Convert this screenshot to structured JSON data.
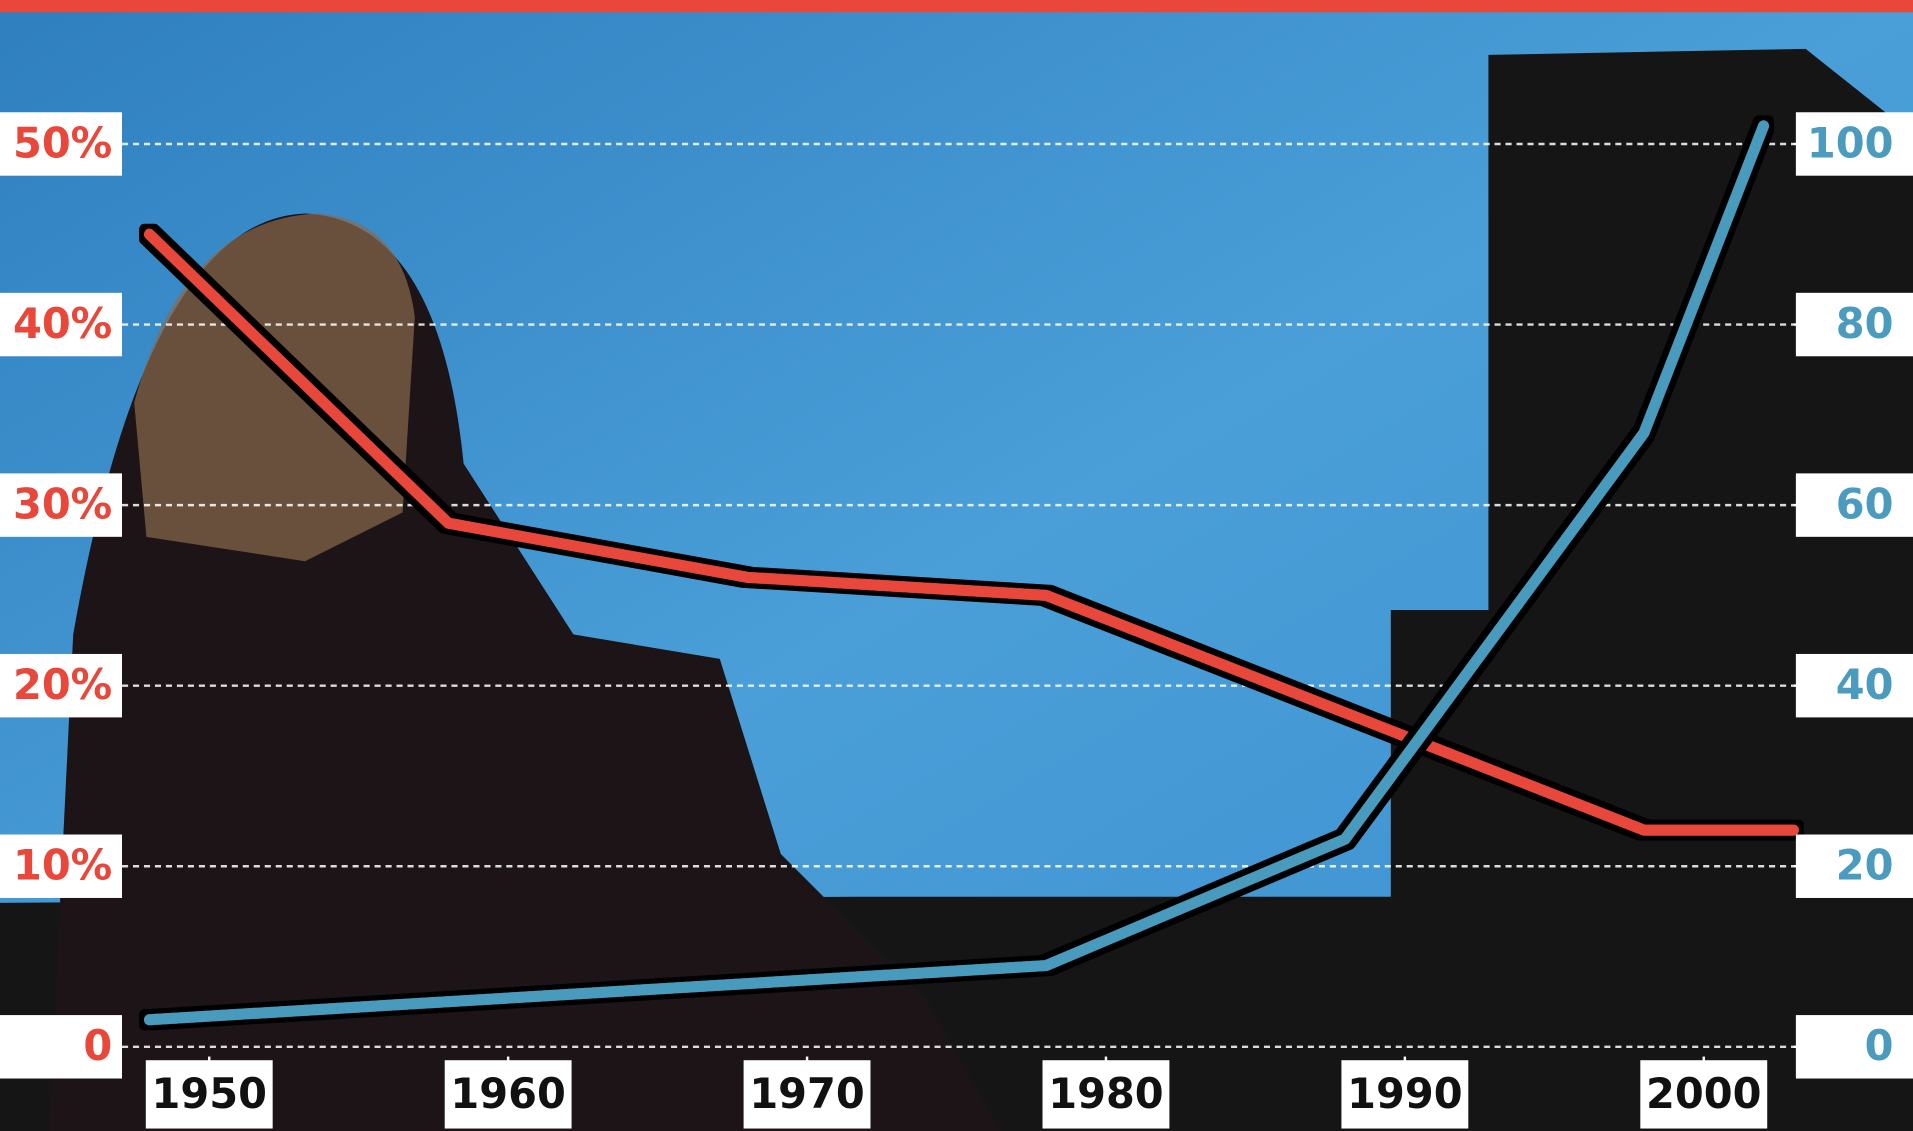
{
  "chart_data": {
    "type": "line",
    "xlim": [
      1943,
      2007
    ],
    "xticks": [
      1950,
      1960,
      1970,
      1980,
      1990,
      2000
    ],
    "ylim": [
      0,
      55
    ],
    "yticks": [
      0,
      {
        "value": 10,
        "label": "10%"
      },
      {
        "value": 20,
        "label": "20%"
      },
      {
        "value": 30,
        "label": "30%"
      },
      {
        "value": 40,
        "label": "40%"
      },
      {
        "value": 50,
        "label": "50%"
      }
    ],
    "y2lim": [
      0,
      110
    ],
    "y2ticks": [
      0,
      20,
      40,
      60,
      80,
      100
    ],
    "grid": true,
    "series": [
      {
        "color": "#e8473a",
        "x": [
          1948,
          1958,
          1968,
          1978,
          1998,
          2003
        ],
        "values": [
          45,
          29,
          26,
          25,
          12,
          12
        ]
      },
      {
        "color": "#4a9bbd",
        "axis": "y2",
        "x": [
          1948,
          1978,
          1988,
          1998,
          2002
        ],
        "values": [
          3,
          9,
          23,
          68,
          102
        ]
      }
    ]
  }
}
